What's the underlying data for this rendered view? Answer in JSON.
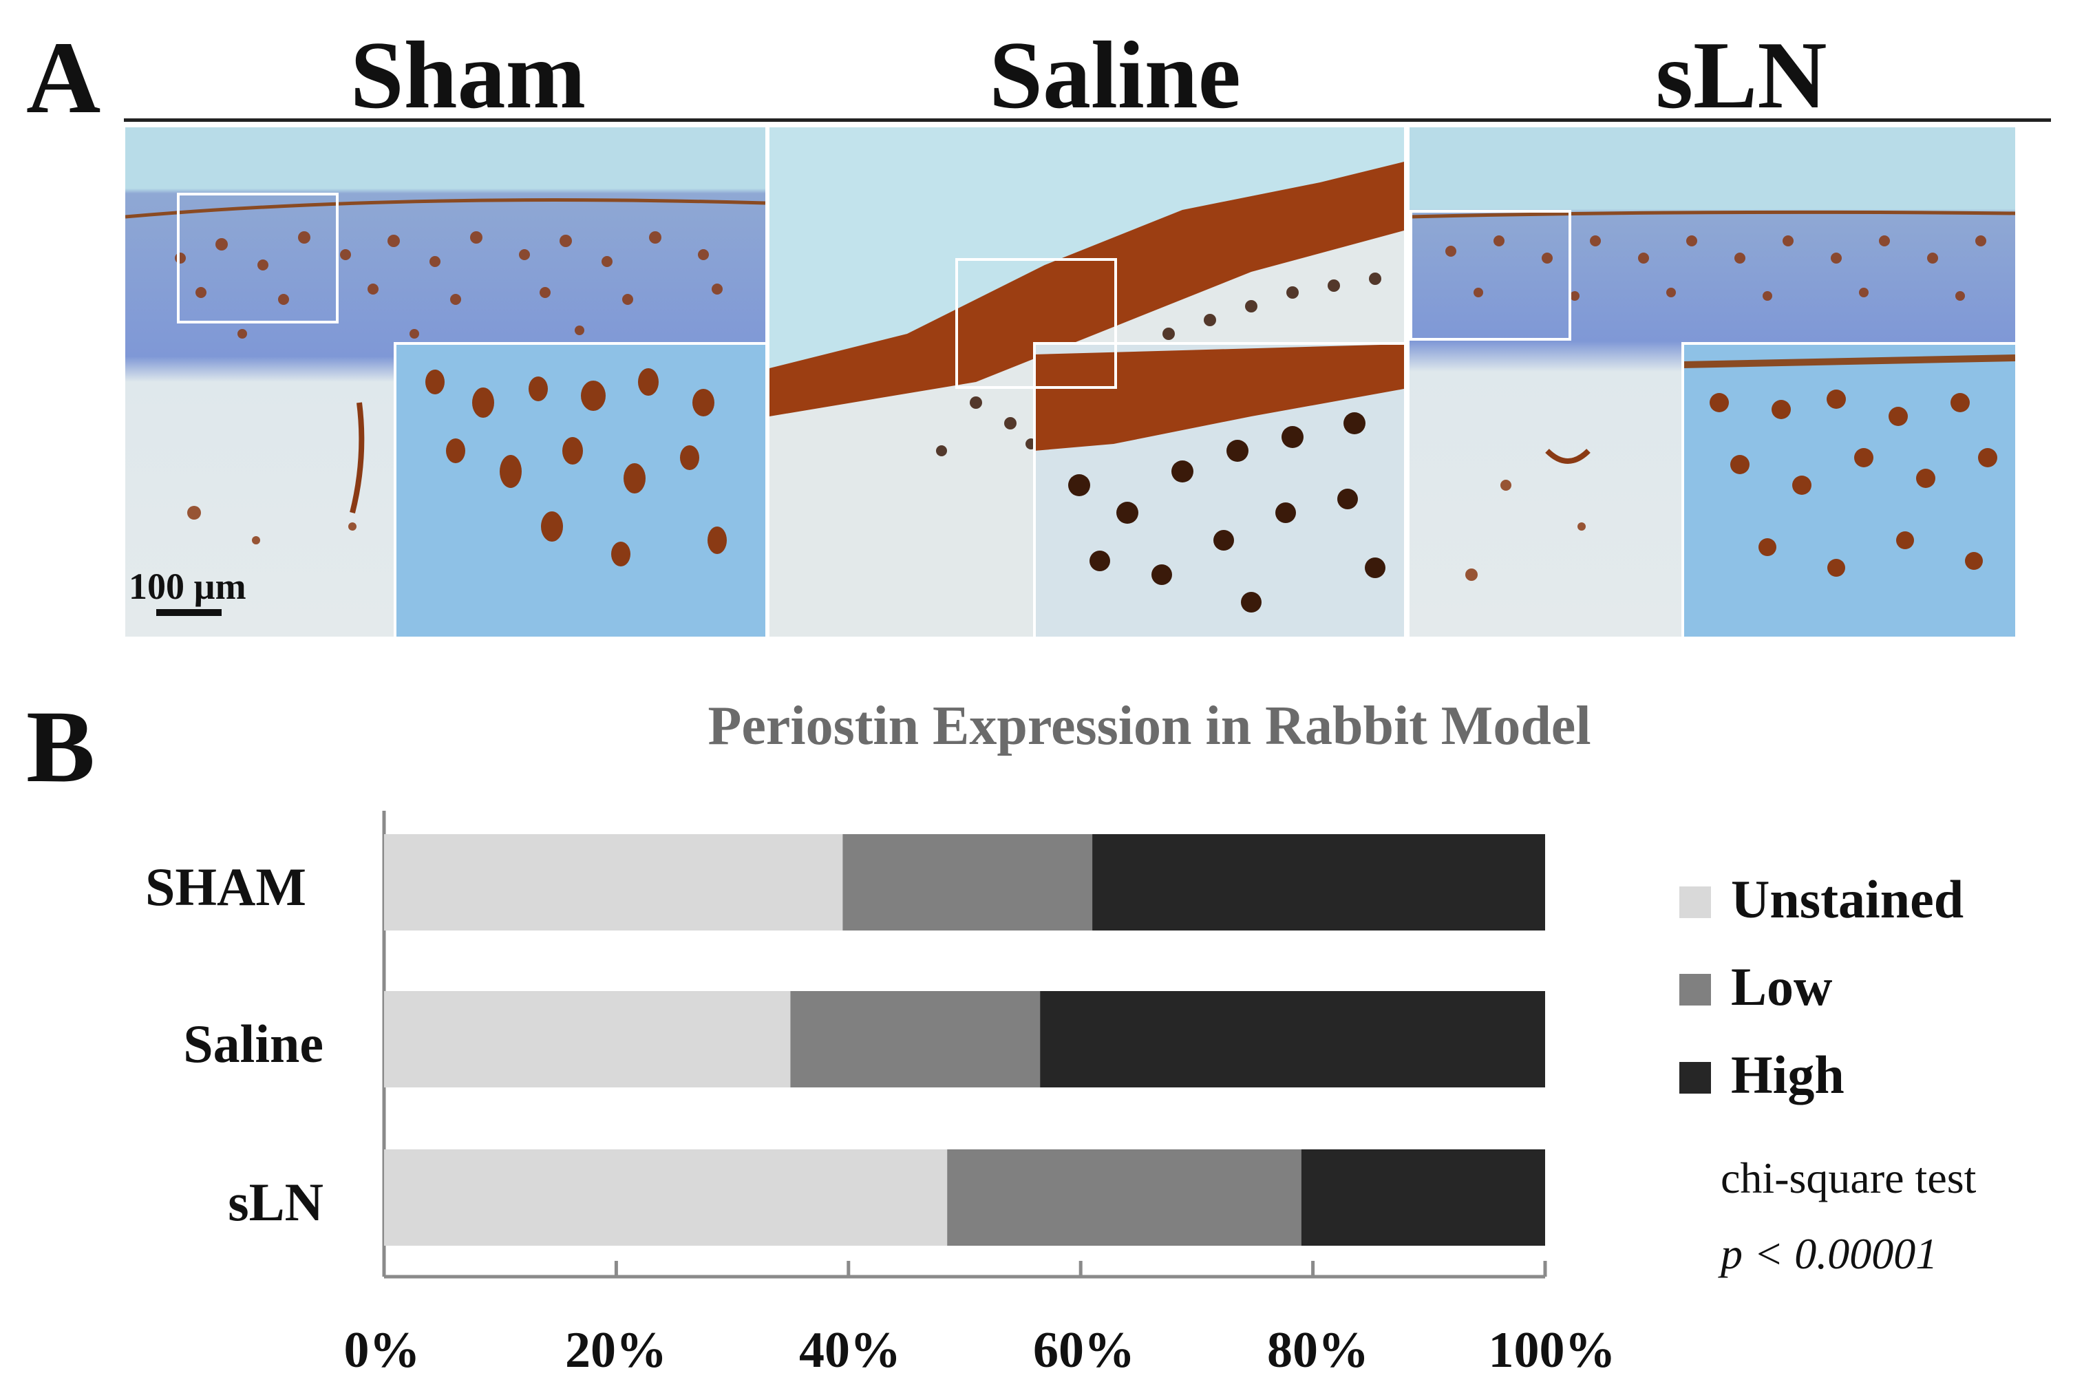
{
  "panel_a": {
    "letter": "A",
    "groups": [
      "Sham",
      "Saline",
      "sLN"
    ],
    "scale_bar_label": "100 µm"
  },
  "panel_b": {
    "letter": "B"
  },
  "chart_data": {
    "type": "bar",
    "orientation": "horizontal",
    "stacked": true,
    "title": "Periostin Expression in Rabbit Model",
    "categories": [
      "SHAM",
      "Saline",
      "sLN"
    ],
    "series": [
      {
        "name": "Unstained",
        "values": [
          39.5,
          35,
          48.5
        ],
        "color": "#d9d9d9"
      },
      {
        "name": "Low",
        "values": [
          21.5,
          21.5,
          30.5
        ],
        "color": "#808080"
      },
      {
        "name": "High",
        "values": [
          39,
          43.5,
          21
        ],
        "color": "#262626"
      }
    ],
    "xlim": [
      0,
      100
    ],
    "xticks": [
      "0%",
      "20%",
      "40%",
      "60%",
      "80%",
      "100%"
    ],
    "xlabel": "",
    "ylabel": "",
    "legend_position": "right",
    "annotation": {
      "line1": "chi-square test",
      "line2": "p < 0.00001"
    }
  }
}
